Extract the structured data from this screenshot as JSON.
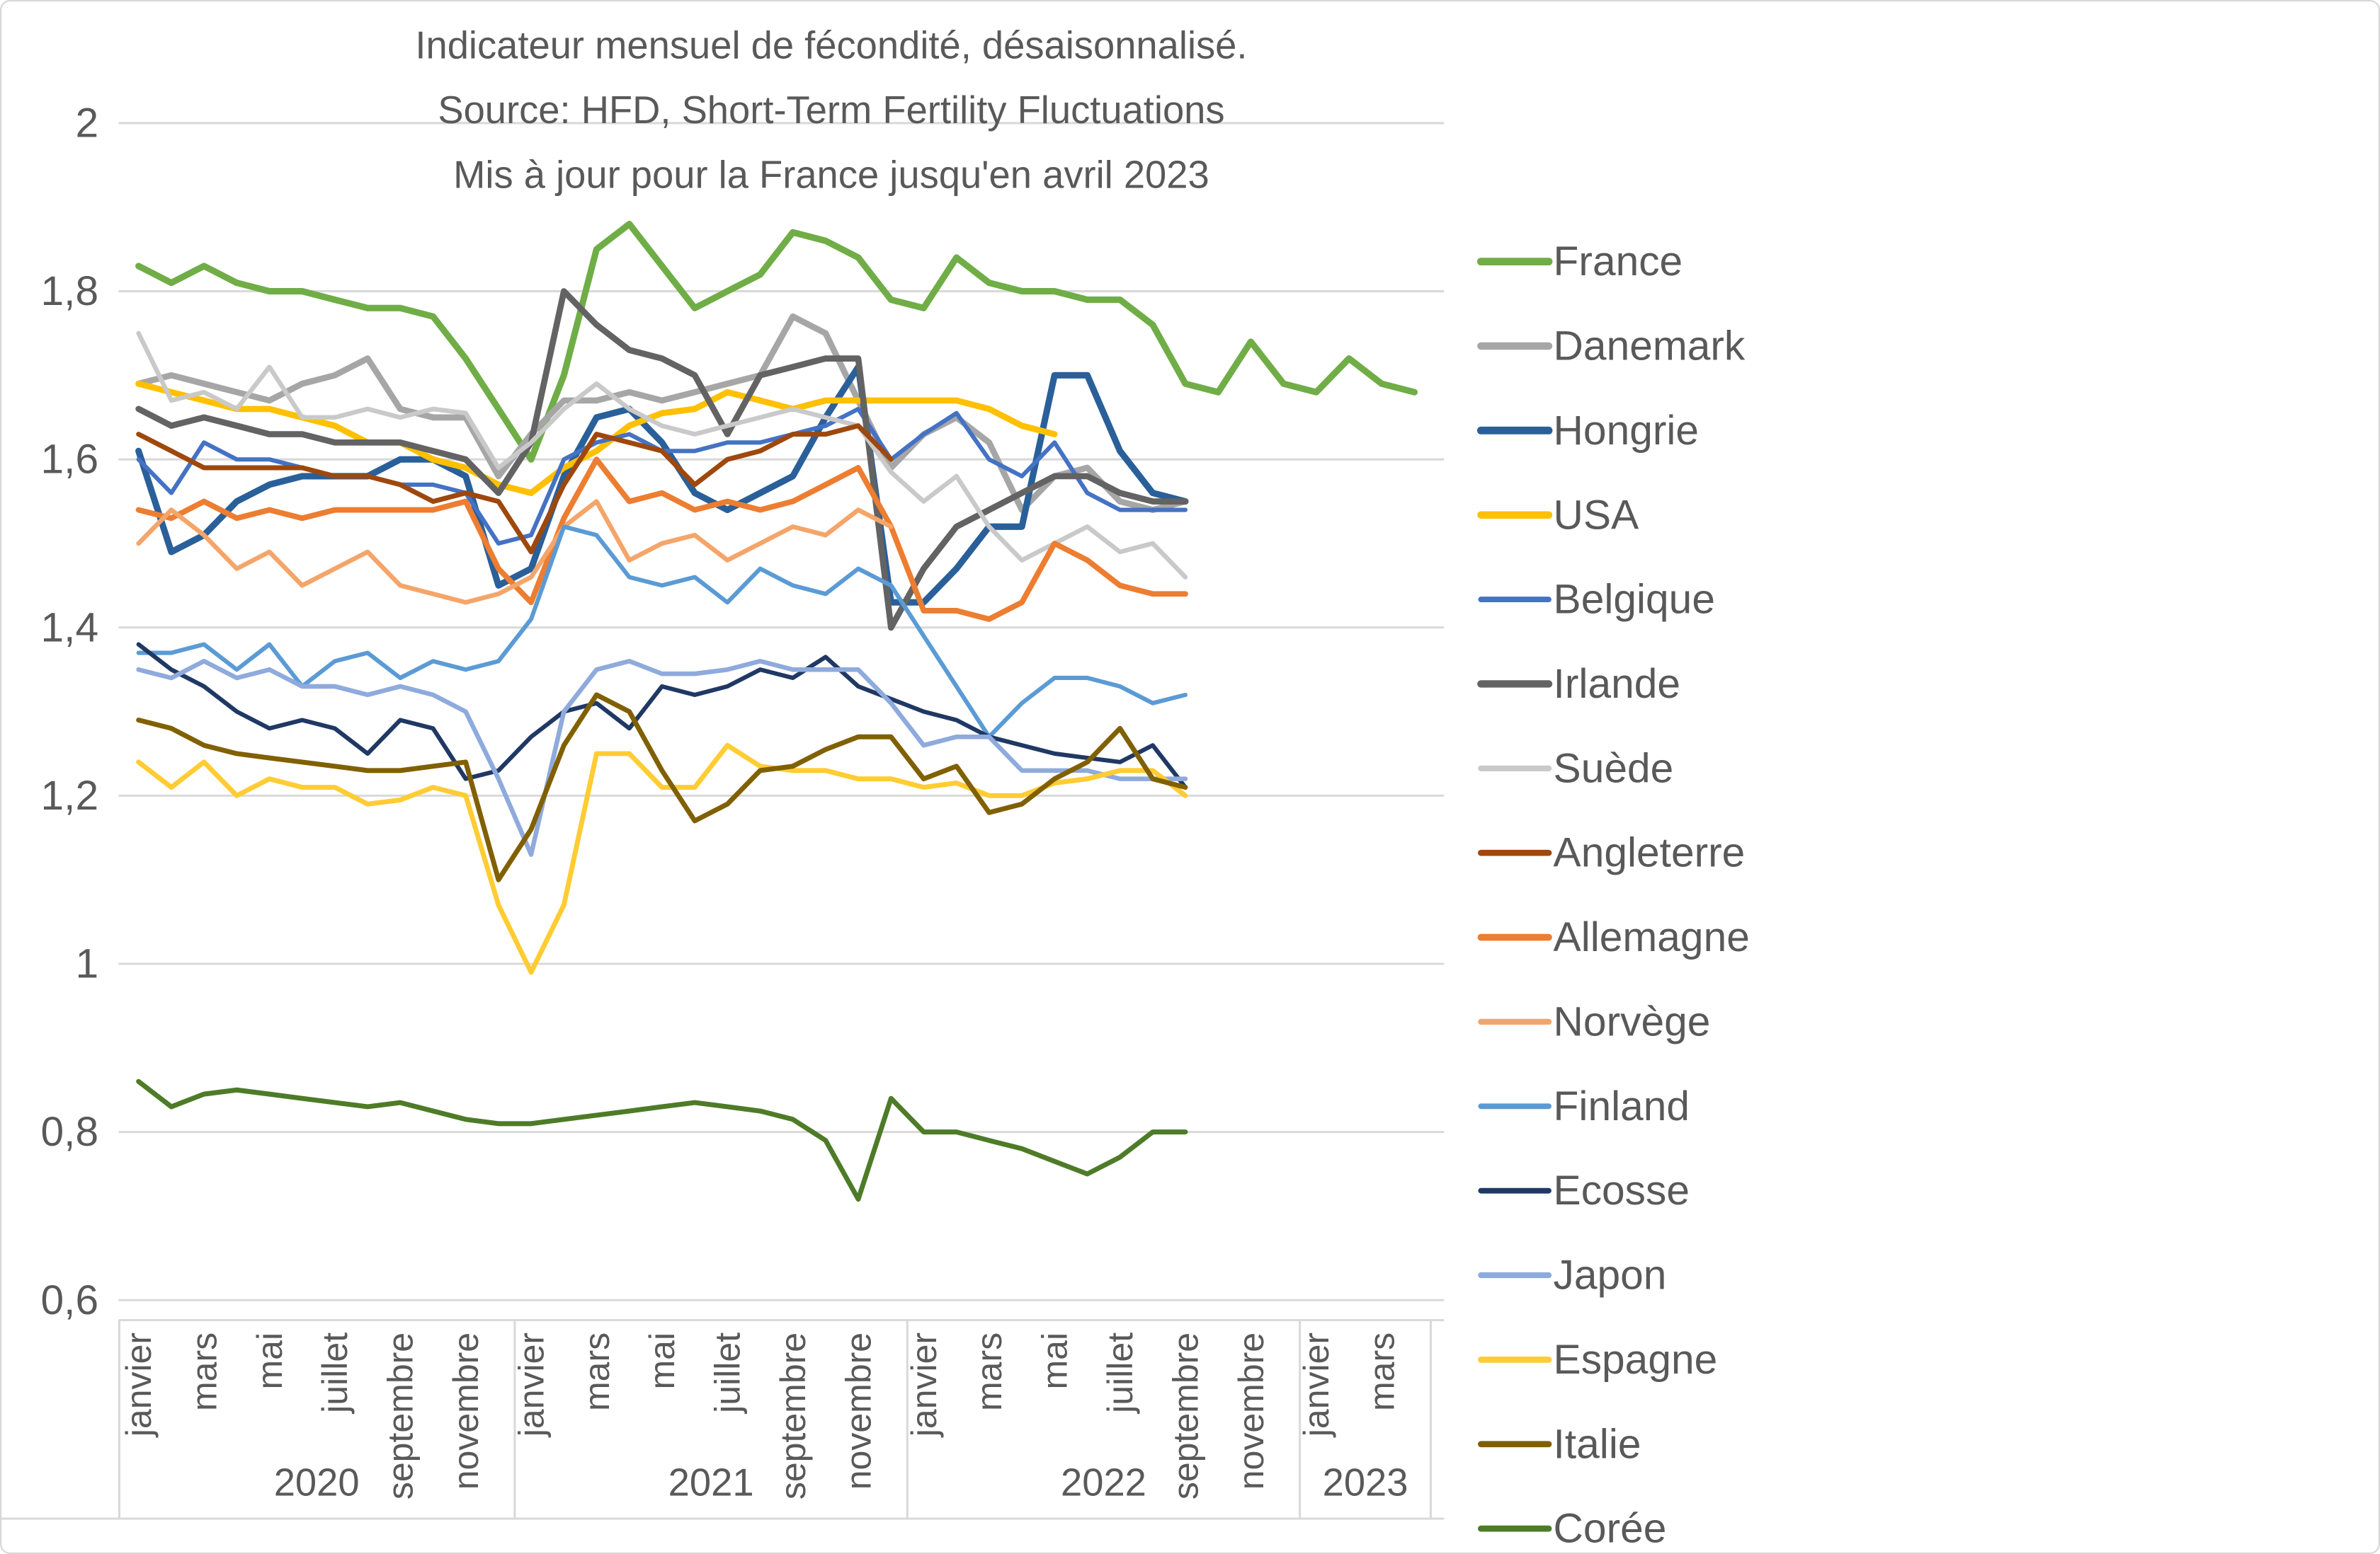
{
  "title": {
    "line1": "Indicateur mensuel de fécondité, désaisonnalisé.",
    "line2": "Source: HFD, Short-Term Fertility Fluctuations",
    "line3": "Mis à jour pour la France jusqu'en avril 2023"
  },
  "colors": {
    "background": "#FFFFFF",
    "grid": "#D9D9D9",
    "axis_line": "#BFBFBF",
    "axis_text": "#595959",
    "title_text": "#595959",
    "frame_border": "#D7D7D7"
  },
  "chart_data": {
    "type": "line",
    "grid": true,
    "legend_position": "right",
    "y_axis": {
      "min": 0.6,
      "max": 2.0,
      "step": 0.2,
      "tick_labels": [
        "2",
        "1,8",
        "1,6",
        "1,4",
        "1,2",
        "1",
        "0,8",
        "0,6"
      ]
    },
    "x_categories": [
      "janvier 2020",
      "février 2020",
      "mars 2020",
      "avril 2020",
      "mai 2020",
      "juin 2020",
      "juillet 2020",
      "août 2020",
      "septembre 2020",
      "octobre 2020",
      "novembre 2020",
      "décembre 2020",
      "janvier 2021",
      "février 2021",
      "mars 2021",
      "avril 2021",
      "mai 2021",
      "juin 2021",
      "juillet 2021",
      "août 2021",
      "septembre 2021",
      "octobre 2021",
      "novembre 2021",
      "décembre 2021",
      "janvier 2022",
      "février 2022",
      "mars 2022",
      "avril 2022",
      "mai 2022",
      "juin 2022",
      "juillet 2022",
      "août 2022",
      "septembre 2022",
      "octobre 2022",
      "novembre 2022",
      "décembre 2022",
      "janvier 2023",
      "février 2023",
      "mars 2023",
      "avril 2023"
    ],
    "x_axis": {
      "month_tick_labels": [
        {
          "index": 0,
          "label": "janvier"
        },
        {
          "index": 2,
          "label": "mars"
        },
        {
          "index": 4,
          "label": "mai"
        },
        {
          "index": 6,
          "label": "juillet"
        },
        {
          "index": 8,
          "label": "septembre"
        },
        {
          "index": 10,
          "label": "novembre"
        },
        {
          "index": 12,
          "label": "janvier"
        },
        {
          "index": 14,
          "label": "mars"
        },
        {
          "index": 16,
          "label": "mai"
        },
        {
          "index": 18,
          "label": "juillet"
        },
        {
          "index": 20,
          "label": "septembre"
        },
        {
          "index": 22,
          "label": "novembre"
        },
        {
          "index": 24,
          "label": "janvier"
        },
        {
          "index": 26,
          "label": "mars"
        },
        {
          "index": 28,
          "label": "mai"
        },
        {
          "index": 30,
          "label": "juillet"
        },
        {
          "index": 32,
          "label": "septembre"
        },
        {
          "index": 34,
          "label": "novembre"
        },
        {
          "index": 36,
          "label": "janvier"
        },
        {
          "index": 38,
          "label": "mars"
        }
      ],
      "year_labels": [
        {
          "label": "2020",
          "start_index": 0,
          "end_index": 11
        },
        {
          "label": "2021",
          "start_index": 12,
          "end_index": 23
        },
        {
          "label": "2022",
          "start_index": 24,
          "end_index": 35
        },
        {
          "label": "2023",
          "start_index": 36,
          "end_index": 39
        }
      ]
    },
    "series": [
      {
        "name": "France",
        "color": "#70AD47",
        "width": 4.2,
        "values": [
          1.83,
          1.81,
          1.83,
          1.81,
          1.8,
          1.8,
          1.79,
          1.78,
          1.78,
          1.77,
          1.72,
          1.66,
          1.6,
          1.7,
          1.85,
          1.88,
          1.83,
          1.78,
          1.8,
          1.82,
          1.87,
          1.86,
          1.84,
          1.79,
          1.78,
          1.84,
          1.81,
          1.8,
          1.8,
          1.79,
          1.79,
          1.76,
          1.69,
          1.68,
          1.74,
          1.69,
          1.68,
          1.72,
          1.69,
          1.68
        ]
      },
      {
        "name": "Danemark",
        "color": "#A6A6A6",
        "width": 4.0,
        "values": [
          1.69,
          1.7,
          1.69,
          1.68,
          1.67,
          1.69,
          1.7,
          1.72,
          1.66,
          1.65,
          1.65,
          1.58,
          1.63,
          1.67,
          1.67,
          1.68,
          1.67,
          1.68,
          1.69,
          1.7,
          1.77,
          1.75,
          1.67,
          1.59,
          1.63,
          1.65,
          1.62,
          1.54,
          1.58,
          1.59,
          1.55,
          1.54,
          1.55
        ]
      },
      {
        "name": "Hongrie",
        "color": "#2A6099",
        "width": 4.2,
        "values": [
          1.61,
          1.49,
          1.51,
          1.55,
          1.57,
          1.58,
          1.58,
          1.58,
          1.6,
          1.6,
          1.58,
          1.45,
          1.47,
          1.58,
          1.65,
          1.66,
          1.62,
          1.56,
          1.54,
          1.56,
          1.58,
          1.65,
          1.71,
          1.43,
          1.43,
          1.47,
          1.52,
          1.52,
          1.7,
          1.7,
          1.61,
          1.56,
          1.55
        ]
      },
      {
        "name": "USA",
        "color": "#FFC000",
        "width": 4.0,
        "values": [
          1.69,
          1.68,
          1.67,
          1.66,
          1.66,
          1.65,
          1.64,
          1.62,
          1.62,
          1.6,
          1.59,
          1.57,
          1.56,
          1.59,
          1.61,
          1.64,
          1.655,
          1.66,
          1.68,
          1.67,
          1.66,
          1.67,
          1.67,
          1.67,
          1.67,
          1.67,
          1.66,
          1.64,
          1.63
        ]
      },
      {
        "name": "Belgique",
        "color": "#4472C4",
        "width": 2.8,
        "values": [
          1.6,
          1.56,
          1.62,
          1.6,
          1.6,
          1.59,
          1.58,
          1.58,
          1.57,
          1.57,
          1.56,
          1.5,
          1.51,
          1.6,
          1.62,
          1.63,
          1.61,
          1.61,
          1.62,
          1.62,
          1.63,
          1.64,
          1.66,
          1.6,
          1.63,
          1.655,
          1.6,
          1.58,
          1.62,
          1.56,
          1.54,
          1.54,
          1.54
        ]
      },
      {
        "name": "Irlande",
        "color": "#636363",
        "width": 4.0,
        "values": [
          1.66,
          1.64,
          1.65,
          1.64,
          1.63,
          1.63,
          1.62,
          1.62,
          1.62,
          1.61,
          1.6,
          1.56,
          1.62,
          1.8,
          1.76,
          1.73,
          1.72,
          1.7,
          1.63,
          1.7,
          1.71,
          1.72,
          1.72,
          1.4,
          1.47,
          1.52,
          1.54,
          1.56,
          1.58,
          1.58,
          1.56,
          1.55,
          1.55
        ]
      },
      {
        "name": "Suède",
        "color": "#C9C9C9",
        "width": 3.0,
        "values": [
          1.75,
          1.67,
          1.68,
          1.66,
          1.71,
          1.65,
          1.65,
          1.66,
          1.65,
          1.66,
          1.655,
          1.59,
          1.62,
          1.66,
          1.69,
          1.66,
          1.64,
          1.63,
          1.64,
          1.65,
          1.66,
          1.65,
          1.64,
          1.585,
          1.55,
          1.58,
          1.52,
          1.48,
          1.5,
          1.52,
          1.49,
          1.5,
          1.46
        ]
      },
      {
        "name": "Angleterre",
        "color": "#9E480E",
        "width": 3.2,
        "values": [
          1.63,
          1.61,
          1.59,
          1.59,
          1.59,
          1.59,
          1.58,
          1.58,
          1.57,
          1.55,
          1.56,
          1.55,
          1.49,
          1.57,
          1.63,
          1.62,
          1.61,
          1.57,
          1.6,
          1.61,
          1.63,
          1.63,
          1.64,
          1.6
        ]
      },
      {
        "name": "Allemagne",
        "color": "#ED7D31",
        "width": 3.6,
        "values": [
          1.54,
          1.53,
          1.55,
          1.53,
          1.54,
          1.53,
          1.54,
          1.54,
          1.54,
          1.54,
          1.55,
          1.47,
          1.43,
          1.53,
          1.6,
          1.55,
          1.56,
          1.54,
          1.55,
          1.54,
          1.55,
          1.57,
          1.59,
          1.52,
          1.42,
          1.42,
          1.41,
          1.43,
          1.5,
          1.48,
          1.45,
          1.44,
          1.44
        ]
      },
      {
        "name": "Norvège",
        "color": "#F4A56A",
        "width": 3.0,
        "values": [
          1.5,
          1.54,
          1.51,
          1.47,
          1.49,
          1.45,
          1.47,
          1.49,
          1.45,
          1.44,
          1.43,
          1.44,
          1.46,
          1.52,
          1.55,
          1.48,
          1.5,
          1.51,
          1.48,
          1.5,
          1.52,
          1.51,
          1.54,
          1.52
        ]
      },
      {
        "name": "Finland",
        "color": "#5B9BD5",
        "width": 2.8,
        "values": [
          1.37,
          1.37,
          1.38,
          1.35,
          1.38,
          1.33,
          1.36,
          1.37,
          1.34,
          1.36,
          1.35,
          1.36,
          1.41,
          1.52,
          1.51,
          1.46,
          1.45,
          1.46,
          1.43,
          1.47,
          1.45,
          1.44,
          1.47,
          1.45,
          1.39,
          1.33,
          1.27,
          1.31,
          1.34,
          1.34,
          1.33,
          1.31,
          1.32
        ]
      },
      {
        "name": "Ecosse",
        "color": "#203864",
        "width": 2.8,
        "values": [
          1.38,
          1.35,
          1.33,
          1.3,
          1.28,
          1.29,
          1.28,
          1.25,
          1.29,
          1.28,
          1.22,
          1.23,
          1.27,
          1.3,
          1.31,
          1.28,
          1.33,
          1.32,
          1.33,
          1.35,
          1.34,
          1.365,
          1.33,
          1.315,
          1.3,
          1.29,
          1.27,
          1.26,
          1.25,
          1.245,
          1.24,
          1.26,
          1.21
        ]
      },
      {
        "name": "Japon",
        "color": "#8FAADC",
        "width": 3.0,
        "values": [
          1.35,
          1.34,
          1.36,
          1.34,
          1.35,
          1.33,
          1.33,
          1.32,
          1.33,
          1.32,
          1.3,
          1.22,
          1.13,
          1.3,
          1.35,
          1.36,
          1.345,
          1.345,
          1.35,
          1.36,
          1.35,
          1.35,
          1.35,
          1.31,
          1.26,
          1.27,
          1.27,
          1.23,
          1.23,
          1.23,
          1.22,
          1.22,
          1.22
        ]
      },
      {
        "name": "Espagne",
        "color": "#FFCC33",
        "width": 3.2,
        "values": [
          1.24,
          1.21,
          1.24,
          1.2,
          1.22,
          1.21,
          1.21,
          1.19,
          1.195,
          1.21,
          1.2,
          1.07,
          0.99,
          1.07,
          1.25,
          1.25,
          1.21,
          1.21,
          1.26,
          1.235,
          1.23,
          1.23,
          1.22,
          1.22,
          1.21,
          1.215,
          1.2,
          1.2,
          1.215,
          1.22,
          1.23,
          1.23,
          1.2
        ]
      },
      {
        "name": "Italie",
        "color": "#806000",
        "width": 3.2,
        "values": [
          1.29,
          1.28,
          1.26,
          1.25,
          1.245,
          1.24,
          1.235,
          1.23,
          1.23,
          1.235,
          1.24,
          1.1,
          1.16,
          1.26,
          1.32,
          1.3,
          1.23,
          1.17,
          1.19,
          1.23,
          1.235,
          1.255,
          1.27,
          1.27,
          1.22,
          1.235,
          1.18,
          1.19,
          1.22,
          1.24,
          1.28,
          1.22,
          1.21
        ]
      },
      {
        "name": "Corée",
        "color": "#4E7B28",
        "width": 3.2,
        "values": [
          0.86,
          0.83,
          0.845,
          0.85,
          0.845,
          0.84,
          0.835,
          0.83,
          0.835,
          0.825,
          0.815,
          0.81,
          0.81,
          0.815,
          0.82,
          0.825,
          0.83,
          0.835,
          0.83,
          0.825,
          0.815,
          0.79,
          0.72,
          0.84,
          0.8,
          0.8,
          0.79,
          0.78,
          0.765,
          0.75,
          0.77,
          0.8,
          0.8
        ]
      }
    ]
  }
}
